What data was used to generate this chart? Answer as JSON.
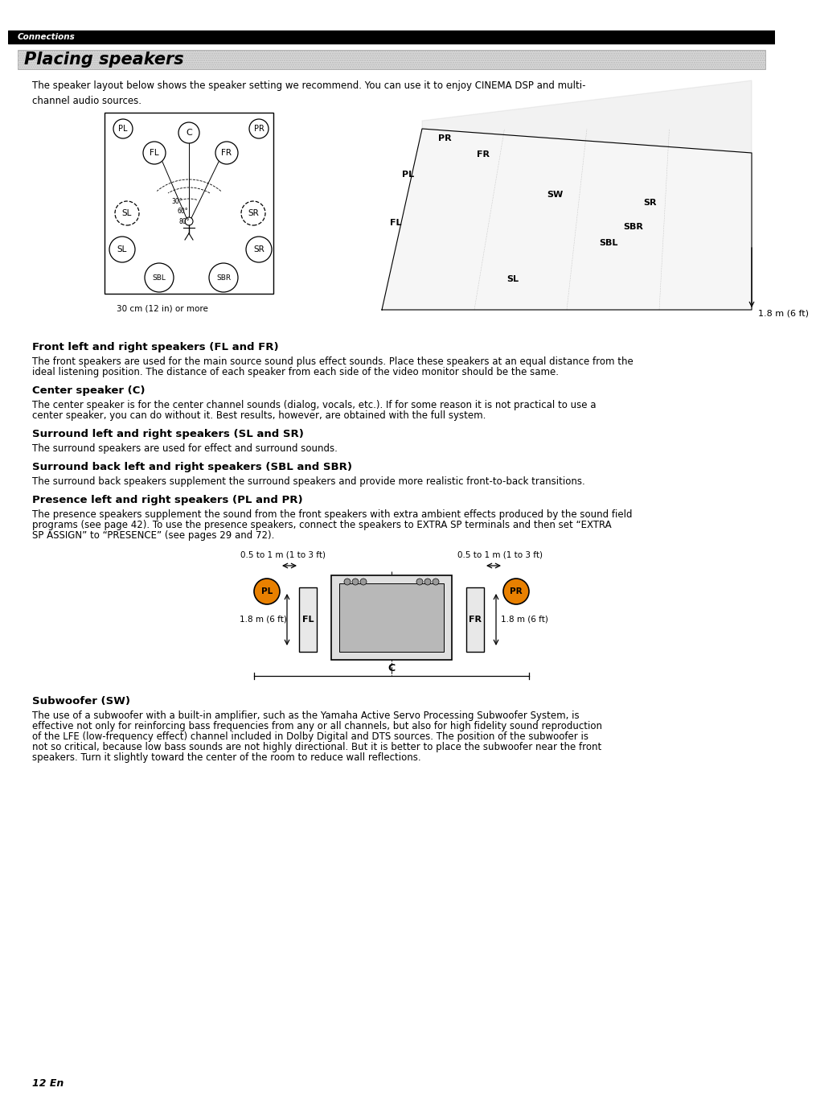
{
  "page_bg": "#ffffff",
  "header_bg": "#000000",
  "header_text": "Connections",
  "header_text_color": "#ffffff",
  "title_text": "Placing speakers",
  "title_bg": "#cccccc",
  "title_text_color": "#000000",
  "intro_text": "The speaker layout below shows the speaker setting we recommend. You can use it to enjoy CINEMA DSP and multi-\nchannel audio sources.",
  "section_headings": [
    "Front left and right speakers (FL and FR)",
    "Center speaker (C)",
    "Surround left and right speakers (SL and SR)",
    "Surround back left and right speakers (SBL and SBR)",
    "Presence left and right speakers (PL and PR)",
    "Subwoofer (SW)"
  ],
  "section_bodies": [
    "The front speakers are used for the main source sound plus effect sounds. Place these speakers at an equal distance from the\nideal listening position. The distance of each speaker from each side of the video monitor should be the same.",
    "The center speaker is for the center channel sounds (dialog, vocals, etc.). If for some reason it is not practical to use a\ncenter speaker, you can do without it. Best results, however, are obtained with the full system.",
    "The surround speakers are used for effect and surround sounds.",
    "The surround back speakers supplement the surround speakers and provide more realistic front-to-back transitions.",
    "The presence speakers supplement the sound from the front speakers with extra ambient effects produced by the sound field\nprograms (see page 42). To use the presence speakers, connect the speakers to EXTRA SP terminals and then set “EXTRA\nSP ASSIGN” to “PRESENCE” (see pages 29 and 72).",
    "The use of a subwoofer with a built-in amplifier, such as the Yamaha Active Servo Processing Subwoofer System, is\neffective not only for reinforcing bass frequencies from any or all channels, but also for high fidelity sound reproduction\nof the LFE (low-frequency effect) channel included in Dolby Digital and DTS sources. The position of the subwoofer is\nnot so critical, because low bass sounds are not highly directional. But it is better to place the subwoofer near the front\nspeakers. Turn it slightly toward the center of the room to reduce wall reflections."
  ],
  "page_number": "12 En",
  "bottom_label_left": "0.5 to 1 m (1 to 3 ft)",
  "bottom_label_right": "0.5 to 1 m (1 to 3 ft)",
  "bottom_label_fl": "1.8 m (6 ft)",
  "bottom_label_fr": "1.8 m (6 ft)",
  "bottom_caption": "30 cm (12 in) or more",
  "right_caption": "1.8 m (6 ft)"
}
